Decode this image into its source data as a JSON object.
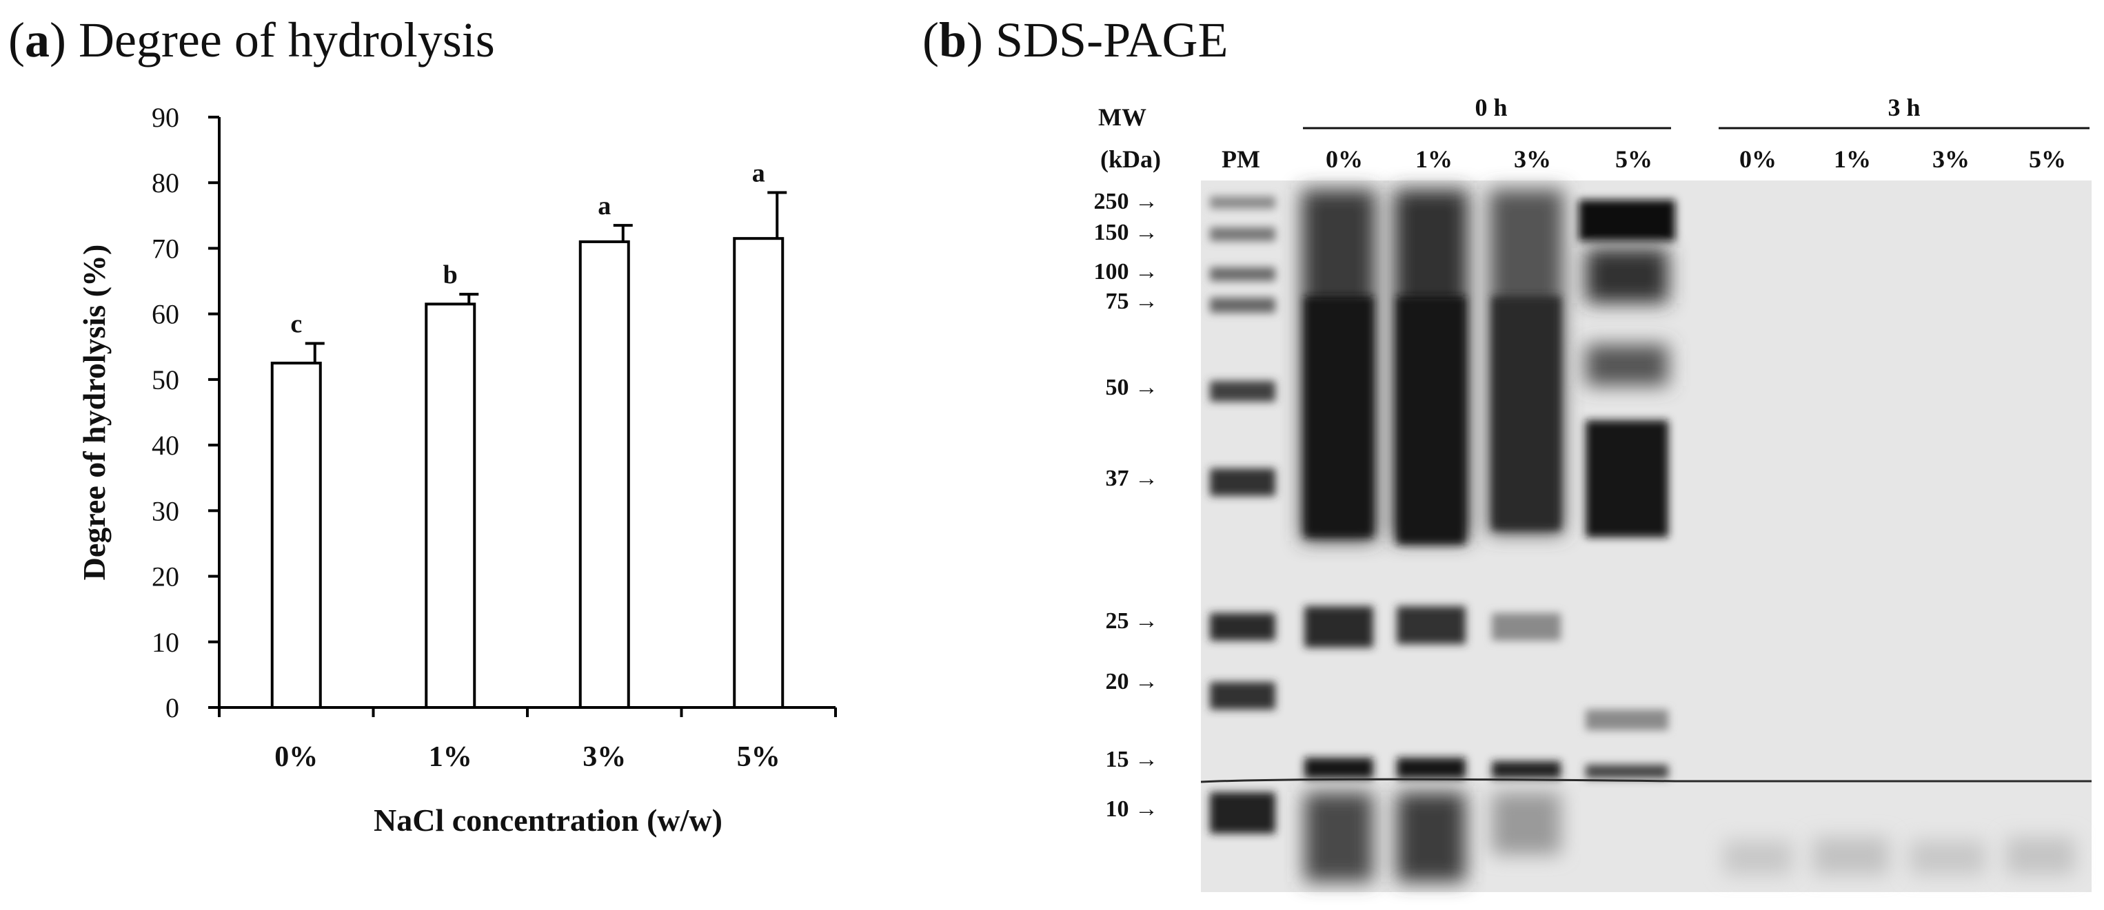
{
  "panel_a": {
    "letter": "a",
    "title": "Degree of hydrolysis"
  },
  "panel_b": {
    "letter": "b",
    "title": "SDS-PAGE",
    "mw_label_line1": "MW",
    "mw_label_line2": "(kDa)",
    "marker_lane_label": "PM",
    "group_0h_label": "0 h",
    "group_3h_label": "3 h",
    "lanes_0h": [
      "0%",
      "1%",
      "3%",
      "5%"
    ],
    "lanes_3h": [
      "0%",
      "1%",
      "3%",
      "5%"
    ],
    "mw_markers": [
      "250",
      "150",
      "100",
      "75",
      "50",
      "37",
      "25",
      "20",
      "15",
      "10"
    ],
    "arrow_glyph": "→",
    "gel_background": "#e6e6e6",
    "band_color": "#141414"
  },
  "chart_data": {
    "type": "bar",
    "title": "Degree of hydrolysis",
    "xlabel": "NaCl concentration (w/w)",
    "ylabel": "Degree of hydrolysis (%)",
    "ylim": [
      0,
      90
    ],
    "yticks": [
      0,
      10,
      20,
      30,
      40,
      50,
      60,
      70,
      80,
      90
    ],
    "categories": [
      "0%",
      "1%",
      "3%",
      "5%"
    ],
    "values": [
      52.5,
      61.5,
      71.0,
      71.5
    ],
    "errors": [
      3.0,
      1.5,
      2.5,
      7.0
    ],
    "significance_letters": [
      "c",
      "b",
      "a",
      "a"
    ],
    "bar_fill": "#ffffff",
    "bar_stroke": "#000000"
  }
}
